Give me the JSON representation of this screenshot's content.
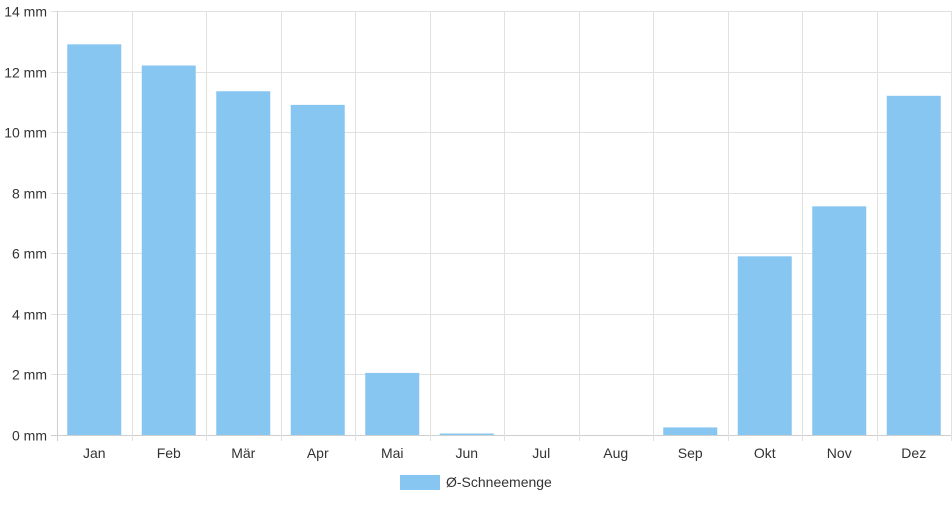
{
  "chart_data": {
    "type": "bar",
    "categories": [
      "Jan",
      "Feb",
      "Mär",
      "Apr",
      "Mai",
      "Jun",
      "Jul",
      "Aug",
      "Sep",
      "Okt",
      "Nov",
      "Dez"
    ],
    "series": [
      {
        "name": "Ø-Schneemenge",
        "values": [
          12.9,
          12.2,
          11.35,
          10.9,
          2.05,
          0.05,
          0,
          0,
          0.25,
          5.9,
          7.55,
          11.2
        ],
        "color": "#88c6f2"
      }
    ],
    "ylim": [
      0,
      14
    ],
    "yticks": [
      0,
      2,
      4,
      6,
      8,
      10,
      12,
      14
    ],
    "ytick_labels": [
      "0 mm",
      "2 mm",
      "4 mm",
      "6 mm",
      "8 mm",
      "10 mm",
      "12 mm",
      "14 mm"
    ],
    "grid": true,
    "legend_position": "bottom-center",
    "gridline_color": "#e1e1e1",
    "axis_color": "#cfcfcf"
  }
}
